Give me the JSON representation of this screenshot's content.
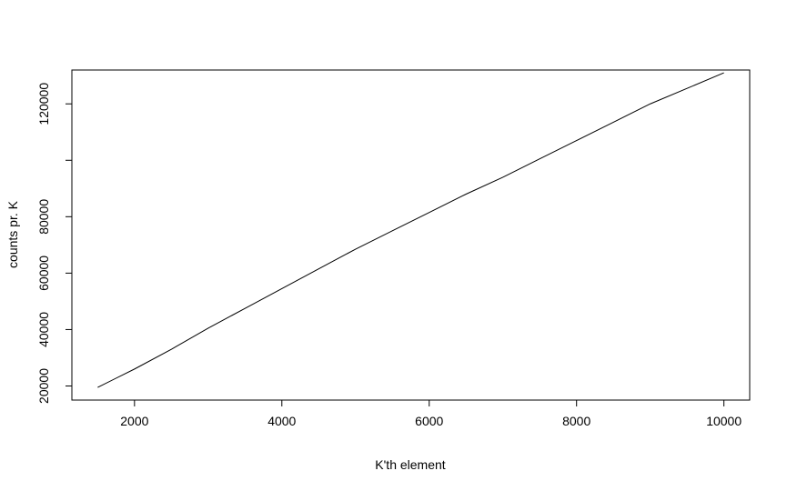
{
  "chart_data": {
    "type": "line",
    "title": "",
    "xlabel": "K'th element",
    "ylabel": "counts pr. K",
    "xlim": [
      1150,
      10350
    ],
    "ylim": [
      15000,
      132000
    ],
    "x_ticks": [
      2000,
      4000,
      6000,
      8000,
      10000
    ],
    "y_ticks": [
      20000,
      40000,
      60000,
      80000,
      120000
    ],
    "x_tick_labels": [
      "2000",
      "4000",
      "6000",
      "8000",
      "10000"
    ],
    "y_tick_labels": [
      "20000",
      "40000",
      "60000",
      "80000",
      "120000"
    ],
    "y_unlabeled_ticks": [
      100000
    ],
    "grid": false,
    "line_color": "#000000",
    "series": [
      {
        "x": [
          1500,
          2000,
          2500,
          3000,
          3500,
          4000,
          4500,
          5000,
          5500,
          6000,
          6500,
          7000,
          7500,
          8000,
          8500,
          9000,
          9500,
          10000
        ],
        "values": [
          19500,
          26000,
          33000,
          40500,
          47500,
          54500,
          61500,
          68500,
          75000,
          81500,
          88000,
          94000,
          100500,
          107000,
          113500,
          120000,
          125500,
          131000
        ]
      }
    ]
  }
}
